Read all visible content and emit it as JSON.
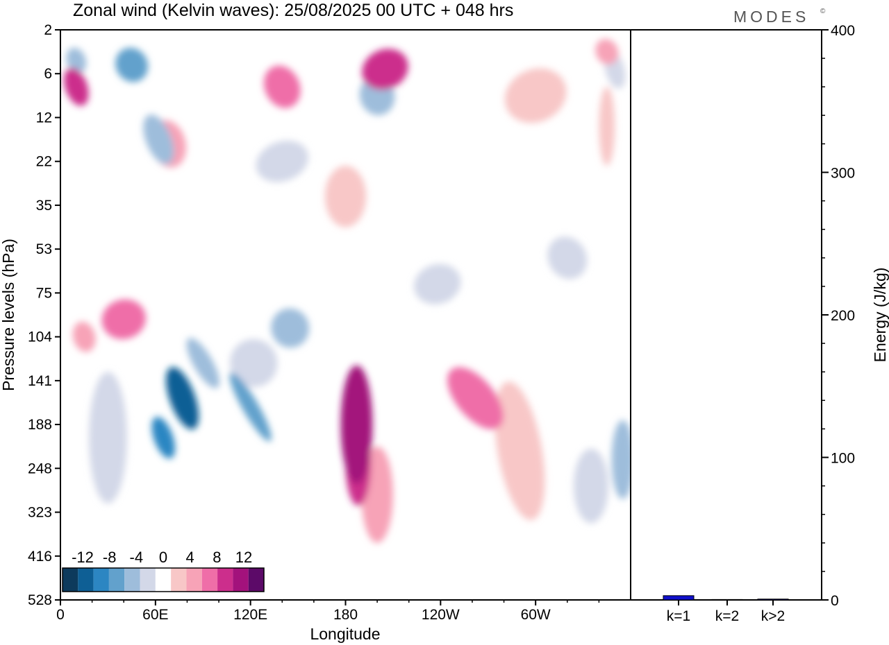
{
  "title": "Zonal wind (Kelvin waves):  25/08/2025  00 UTC  + 048 hrs",
  "logo": "MODES",
  "logo_mark": "©",
  "chart_data": [
    {
      "type": "heatmap",
      "title": "Zonal wind (Kelvin waves):  25/08/2025  00 UTC  + 048 hrs",
      "xlabel": "Longitude",
      "ylabel": "Pressure levels (hPa)",
      "x_ticks": [
        "0",
        "60E",
        "120E",
        "180",
        "120W",
        "60W"
      ],
      "x_tick_lon": [
        0,
        60,
        120,
        180,
        240,
        300
      ],
      "xlim": [
        0,
        360
      ],
      "y_levels": [
        "2",
        "6",
        "12",
        "22",
        "35",
        "53",
        "75",
        "104",
        "141",
        "188",
        "248",
        "323",
        "416",
        "528"
      ],
      "colorbar": {
        "labels": [
          "-12",
          "-8",
          "-4",
          "0",
          "4",
          "8",
          "12"
        ],
        "label_values": [
          -12,
          -8,
          -4,
          0,
          4,
          8,
          12
        ],
        "bins": [
          -15,
          -13,
          -11,
          -9,
          -7,
          -5,
          -3,
          3,
          5,
          7,
          9,
          11,
          13,
          15
        ],
        "colors": [
          "#0d3a5c",
          "#0e5f95",
          "#2c86c2",
          "#62a1cc",
          "#9ebddb",
          "#d3d8e8",
          "#ffffff",
          "#f8c7c7",
          "#f7a3b7",
          "#ef6ea8",
          "#cc2e8c",
          "#a3127c",
          "#5c0a68"
        ]
      },
      "blobs": [
        {
          "lon": 62,
          "lev": 2.5,
          "w": 16,
          "h": 1.2,
          "rot": -22,
          "u": -6
        },
        {
          "lon": 77,
          "lev": 8.4,
          "w": 16,
          "h": 1.5,
          "rot": -20,
          "u": -13
        },
        {
          "lon": 65,
          "lev": 9.3,
          "w": 12,
          "h": 1.0,
          "rot": -20,
          "u": -10
        },
        {
          "lon": 90,
          "lev": 7.6,
          "w": 12,
          "h": 1.3,
          "rot": -30,
          "u": -7
        },
        {
          "lon": 30,
          "lev": 9.3,
          "w": 24,
          "h": 3.0,
          "rot": 0,
          "u": -4
        },
        {
          "lon": 120,
          "lev": 8.6,
          "w": 10,
          "h": 1.8,
          "rot": -30,
          "u": -9
        },
        {
          "lon": 145,
          "lev": 6.8,
          "w": 24,
          "h": 0.9,
          "rot": -18,
          "u": -6
        },
        {
          "lon": 122,
          "lev": 7.6,
          "w": 30,
          "h": 1.1,
          "rot": -15,
          "u": -4
        },
        {
          "lon": 187,
          "lev": 9.0,
          "w": 20,
          "h": 2.7,
          "rot": 0,
          "u": 12
        },
        {
          "lon": 188,
          "lev": 9.9,
          "w": 16,
          "h": 1.9,
          "rot": 0,
          "u": 9
        },
        {
          "lon": 200,
          "lev": 10.6,
          "w": 20,
          "h": 2.2,
          "rot": 0,
          "u": 5
        },
        {
          "lon": 262,
          "lev": 8.4,
          "w": 24,
          "h": 1.7,
          "rot": -40,
          "u": 7
        },
        {
          "lon": 290,
          "lev": 9.6,
          "w": 28,
          "h": 3.2,
          "rot": -10,
          "u": 4
        },
        {
          "lon": 40,
          "lev": 6.6,
          "w": 28,
          "h": 0.9,
          "rot": -15,
          "u": 7
        },
        {
          "lon": 15,
          "lev": 7.0,
          "w": 14,
          "h": 0.7,
          "rot": -15,
          "u": 5
        },
        {
          "lon": 238,
          "lev": 5.8,
          "w": 30,
          "h": 0.9,
          "rot": -18,
          "u": -4
        },
        {
          "lon": 355,
          "lev": 9.8,
          "w": 14,
          "h": 1.8,
          "rot": 0,
          "u": -7
        },
        {
          "lon": 335,
          "lev": 10.4,
          "w": 22,
          "h": 1.7,
          "rot": 0,
          "u": -4
        },
        {
          "lon": 180,
          "lev": 3.8,
          "w": 26,
          "h": 1.4,
          "rot": 0,
          "u": 4
        },
        {
          "lon": 68,
          "lev": 2.6,
          "w": 22,
          "h": 1.1,
          "rot": -15,
          "u": 5
        },
        {
          "lon": 140,
          "lev": 3.0,
          "w": 34,
          "h": 0.9,
          "rot": -20,
          "u": -4
        },
        {
          "lon": 10,
          "lev": 1.3,
          "w": 14,
          "h": 0.9,
          "rot": -20,
          "u": 9
        },
        {
          "lon": 45,
          "lev": 0.8,
          "w": 20,
          "h": 0.8,
          "rot": -30,
          "u": -8
        },
        {
          "lon": 140,
          "lev": 1.3,
          "w": 22,
          "h": 1.0,
          "rot": -25,
          "u": 8
        },
        {
          "lon": 205,
          "lev": 0.9,
          "w": 30,
          "h": 0.9,
          "rot": -25,
          "u": 9
        },
        {
          "lon": 200,
          "lev": 1.5,
          "w": 22,
          "h": 0.9,
          "rot": -15,
          "u": -6
        },
        {
          "lon": 350,
          "lev": 0.9,
          "w": 12,
          "h": 0.9,
          "rot": -15,
          "u": -5
        },
        {
          "lon": 345,
          "lev": 0.5,
          "w": 14,
          "h": 0.6,
          "rot": -25,
          "u": 5
        },
        {
          "lon": 345,
          "lev": 2.2,
          "w": 10,
          "h": 1.8,
          "rot": 0,
          "u": 4
        },
        {
          "lon": 10,
          "lev": 0.7,
          "w": 12,
          "h": 0.6,
          "rot": -20,
          "u": -6
        },
        {
          "lon": 320,
          "lev": 5.2,
          "w": 24,
          "h": 1.0,
          "rot": -30,
          "u": -4
        },
        {
          "lon": 300,
          "lev": 1.5,
          "w": 40,
          "h": 1.2,
          "rot": -25,
          "u": 4
        }
      ]
    },
    {
      "type": "bar",
      "categories": [
        "k=1",
        "k=2",
        "k>2"
      ],
      "values": [
        3,
        0.3,
        0.6
      ],
      "ylabel": "Energy (J/kg)",
      "ylim": [
        0,
        400
      ],
      "y_ticks": [
        0,
        100,
        200,
        300,
        400
      ],
      "bar_color": "#1010cc"
    }
  ]
}
